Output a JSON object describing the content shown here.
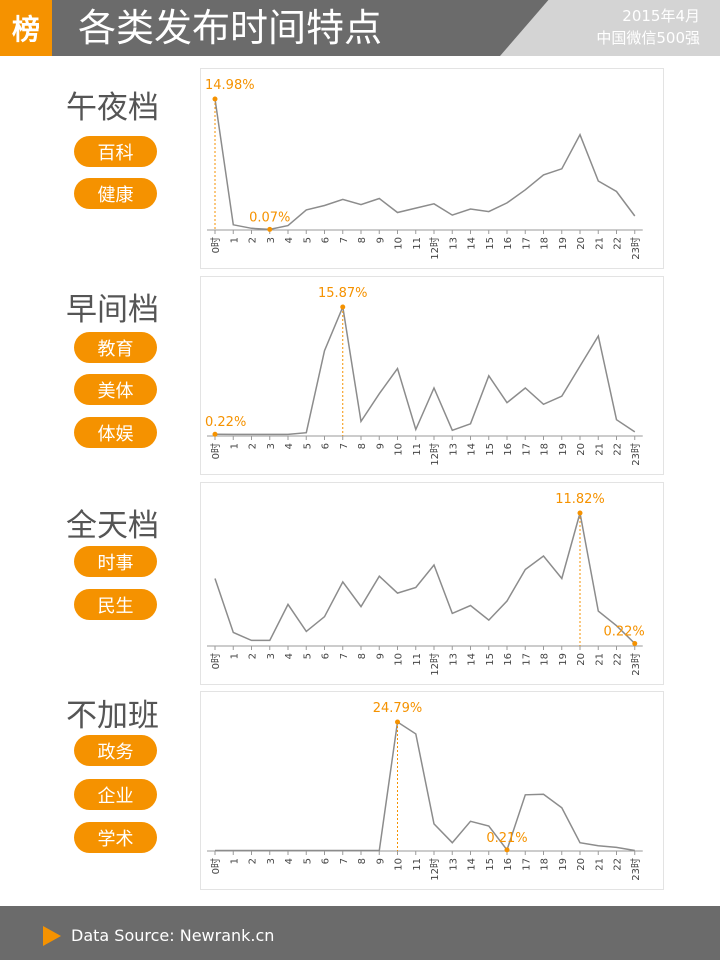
{
  "header": {
    "badge": "榜",
    "title": "各类发布时间特点",
    "date": "2015年4月",
    "scope": "中国微信500强"
  },
  "footer": {
    "source": "Data Source: Newrank.cn"
  },
  "colors": {
    "accent": "#f59200",
    "line": "#8c8c8c",
    "header_bg": "#6b6b6b"
  },
  "sections": [
    {
      "name": "午夜档",
      "tags": [
        "百科",
        "健康"
      ]
    },
    {
      "name": "早间档",
      "tags": [
        "教育",
        "美体",
        "体娱"
      ]
    },
    {
      "name": "全天档",
      "tags": [
        "时事",
        "民生"
      ]
    },
    {
      "name": "不加班",
      "tags": [
        "政务",
        "企业",
        "学术"
      ]
    }
  ],
  "chart_data": [
    {
      "type": "line",
      "categories": [
        "0时",
        "1",
        "2",
        "3",
        "4",
        "5",
        "6",
        "7",
        "8",
        "9",
        "10",
        "11",
        "12时",
        "13",
        "14",
        "15",
        "16",
        "17",
        "18",
        "19",
        "20",
        "21",
        "22",
        "23时"
      ],
      "values": [
        14.98,
        0.6,
        0.2,
        0.07,
        0.5,
        2.3,
        2.8,
        3.5,
        2.9,
        3.6,
        2.0,
        2.5,
        3.0,
        1.7,
        2.4,
        2.1,
        3.1,
        4.6,
        6.3,
        7.0,
        10.9,
        5.6,
        4.4,
        1.6
      ],
      "annotations": [
        {
          "index": 0,
          "label": "14.98%"
        },
        {
          "index": 3,
          "label": "0.07%"
        }
      ]
    },
    {
      "type": "line",
      "categories": [
        "0时",
        "1",
        "2",
        "3",
        "4",
        "5",
        "6",
        "7",
        "8",
        "9",
        "10",
        "11",
        "12时",
        "13",
        "14",
        "15",
        "16",
        "17",
        "18",
        "19",
        "20",
        "21",
        "22",
        "23时"
      ],
      "values": [
        0.22,
        0.2,
        0.2,
        0.2,
        0.2,
        0.4,
        10.5,
        15.87,
        1.8,
        5.2,
        8.3,
        0.8,
        5.9,
        0.7,
        1.5,
        7.4,
        4.1,
        5.9,
        3.9,
        4.9,
        8.6,
        12.3,
        2.0,
        0.5
      ],
      "annotations": [
        {
          "index": 0,
          "label": "0.22%"
        },
        {
          "index": 7,
          "label": "15.87%"
        }
      ]
    },
    {
      "type": "line",
      "categories": [
        "0时",
        "1",
        "2",
        "3",
        "4",
        "5",
        "6",
        "7",
        "8",
        "9",
        "10",
        "11",
        "12时",
        "13",
        "14",
        "15",
        "16",
        "17",
        "18",
        "19",
        "20",
        "21",
        "22",
        "23时"
      ],
      "values": [
        6.0,
        1.2,
        0.5,
        0.5,
        3.7,
        1.3,
        2.6,
        5.7,
        3.5,
        6.2,
        4.7,
        5.2,
        7.2,
        2.9,
        3.6,
        2.3,
        4.0,
        6.8,
        8.0,
        6.0,
        11.82,
        3.1,
        1.8,
        0.22
      ],
      "annotations": [
        {
          "index": 20,
          "label": "11.82%"
        },
        {
          "index": 23,
          "label": "0.22%"
        }
      ]
    },
    {
      "type": "line",
      "categories": [
        "0时",
        "1",
        "2",
        "3",
        "4",
        "5",
        "6",
        "7",
        "8",
        "9",
        "10",
        "11",
        "12时",
        "13",
        "14",
        "15",
        "16",
        "17",
        "18",
        "19",
        "20",
        "21",
        "22",
        "23时"
      ],
      "values": [
        0.1,
        0.1,
        0.1,
        0.1,
        0.1,
        0.1,
        0.1,
        0.1,
        0.1,
        0.1,
        24.79,
        22.5,
        5.2,
        1.6,
        5.7,
        4.8,
        0.21,
        10.8,
        10.9,
        8.3,
        1.6,
        1.0,
        0.7,
        0.1
      ],
      "annotations": [
        {
          "index": 10,
          "label": "24.79%"
        },
        {
          "index": 16,
          "label": "0.21%"
        }
      ]
    }
  ]
}
